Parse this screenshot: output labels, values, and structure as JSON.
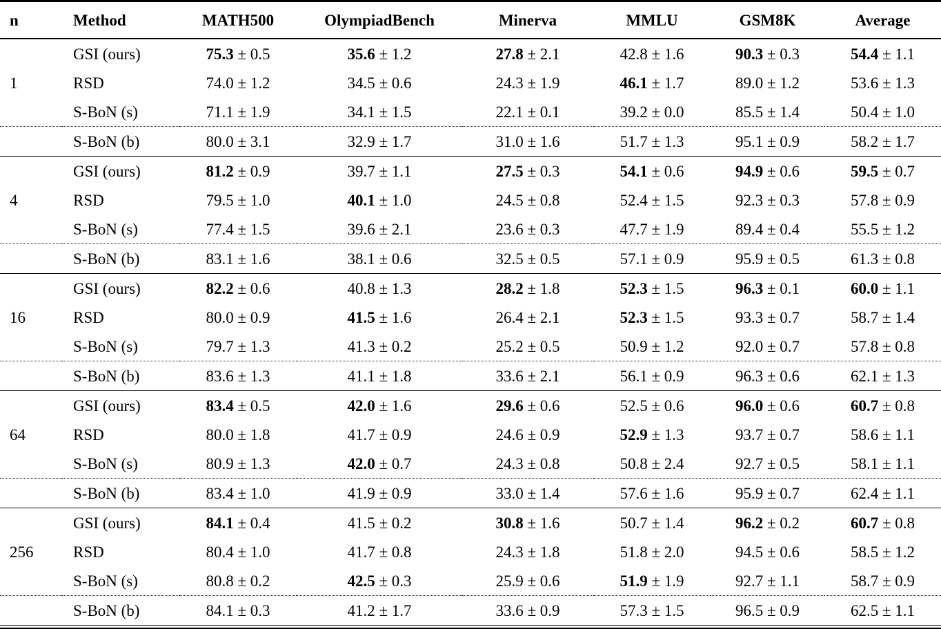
{
  "table": {
    "plus_minus": "±",
    "columns": [
      "n",
      "Method",
      "MATH500",
      "OlympiadBench",
      "Minerva",
      "MMLU",
      "GSM8K",
      "Average"
    ],
    "groups": [
      {
        "n": "1",
        "rows": [
          {
            "method": "GSI (ours)",
            "cells": [
              {
                "mean": "75.3",
                "err": "0.5",
                "bold": true
              },
              {
                "mean": "35.6",
                "err": "1.2",
                "bold": true
              },
              {
                "mean": "27.8",
                "err": "2.1",
                "bold": true
              },
              {
                "mean": "42.8",
                "err": "1.6",
                "bold": false
              },
              {
                "mean": "90.3",
                "err": "0.3",
                "bold": true
              },
              {
                "mean": "54.4",
                "err": "1.1",
                "bold": true
              }
            ]
          },
          {
            "method": "RSD",
            "cells": [
              {
                "mean": "74.0",
                "err": "1.2",
                "bold": false
              },
              {
                "mean": "34.5",
                "err": "0.6",
                "bold": false
              },
              {
                "mean": "24.3",
                "err": "1.9",
                "bold": false
              },
              {
                "mean": "46.1",
                "err": "1.7",
                "bold": true
              },
              {
                "mean": "89.0",
                "err": "1.2",
                "bold": false
              },
              {
                "mean": "53.6",
                "err": "1.3",
                "bold": false
              }
            ]
          },
          {
            "method": "S-BoN (s)",
            "cells": [
              {
                "mean": "71.1",
                "err": "1.9",
                "bold": false
              },
              {
                "mean": "34.1",
                "err": "1.5",
                "bold": false
              },
              {
                "mean": "22.1",
                "err": "0.1",
                "bold": false
              },
              {
                "mean": "39.2",
                "err": "0.0",
                "bold": false
              },
              {
                "mean": "85.5",
                "err": "1.4",
                "bold": false
              },
              {
                "mean": "50.4",
                "err": "1.0",
                "bold": false
              }
            ]
          },
          {
            "method": "S-BoN (b)",
            "cells": [
              {
                "mean": "80.0",
                "err": "3.1",
                "bold": false
              },
              {
                "mean": "32.9",
                "err": "1.7",
                "bold": false
              },
              {
                "mean": "31.0",
                "err": "1.6",
                "bold": false
              },
              {
                "mean": "51.7",
                "err": "1.3",
                "bold": false
              },
              {
                "mean": "95.1",
                "err": "0.9",
                "bold": false
              },
              {
                "mean": "58.2",
                "err": "1.7",
                "bold": false
              }
            ]
          }
        ]
      },
      {
        "n": "4",
        "rows": [
          {
            "method": "GSI (ours)",
            "cells": [
              {
                "mean": "81.2",
                "err": "0.9",
                "bold": true
              },
              {
                "mean": "39.7",
                "err": "1.1",
                "bold": false
              },
              {
                "mean": "27.5",
                "err": "0.3",
                "bold": true
              },
              {
                "mean": "54.1",
                "err": "0.6",
                "bold": true
              },
              {
                "mean": "94.9",
                "err": "0.6",
                "bold": true
              },
              {
                "mean": "59.5",
                "err": "0.7",
                "bold": true
              }
            ]
          },
          {
            "method": "RSD",
            "cells": [
              {
                "mean": "79.5",
                "err": "1.0",
                "bold": false
              },
              {
                "mean": "40.1",
                "err": "1.0",
                "bold": true
              },
              {
                "mean": "24.5",
                "err": "0.8",
                "bold": false
              },
              {
                "mean": "52.4",
                "err": "1.5",
                "bold": false
              },
              {
                "mean": "92.3",
                "err": "0.3",
                "bold": false
              },
              {
                "mean": "57.8",
                "err": "0.9",
                "bold": false
              }
            ]
          },
          {
            "method": "S-BoN (s)",
            "cells": [
              {
                "mean": "77.4",
                "err": "1.5",
                "bold": false
              },
              {
                "mean": "39.6",
                "err": "2.1",
                "bold": false
              },
              {
                "mean": "23.6",
                "err": "0.3",
                "bold": false
              },
              {
                "mean": "47.7",
                "err": "1.9",
                "bold": false
              },
              {
                "mean": "89.4",
                "err": "0.4",
                "bold": false
              },
              {
                "mean": "55.5",
                "err": "1.2",
                "bold": false
              }
            ]
          },
          {
            "method": "S-BoN (b)",
            "cells": [
              {
                "mean": "83.1",
                "err": "1.6",
                "bold": false
              },
              {
                "mean": "38.1",
                "err": "0.6",
                "bold": false
              },
              {
                "mean": "32.5",
                "err": "0.5",
                "bold": false
              },
              {
                "mean": "57.1",
                "err": "0.9",
                "bold": false
              },
              {
                "mean": "95.9",
                "err": "0.5",
                "bold": false
              },
              {
                "mean": "61.3",
                "err": "0.8",
                "bold": false
              }
            ]
          }
        ]
      },
      {
        "n": "16",
        "rows": [
          {
            "method": "GSI (ours)",
            "cells": [
              {
                "mean": "82.2",
                "err": "0.6",
                "bold": true
              },
              {
                "mean": "40.8",
                "err": "1.3",
                "bold": false
              },
              {
                "mean": "28.2",
                "err": "1.8",
                "bold": true
              },
              {
                "mean": "52.3",
                "err": "1.5",
                "bold": true
              },
              {
                "mean": "96.3",
                "err": "0.1",
                "bold": true
              },
              {
                "mean": "60.0",
                "err": "1.1",
                "bold": true
              }
            ]
          },
          {
            "method": "RSD",
            "cells": [
              {
                "mean": "80.0",
                "err": "0.9",
                "bold": false
              },
              {
                "mean": "41.5",
                "err": "1.6",
                "bold": true
              },
              {
                "mean": "26.4",
                "err": "2.1",
                "bold": false
              },
              {
                "mean": "52.3",
                "err": "1.5",
                "bold": true
              },
              {
                "mean": "93.3",
                "err": "0.7",
                "bold": false
              },
              {
                "mean": "58.7",
                "err": "1.4",
                "bold": false
              }
            ]
          },
          {
            "method": "S-BoN (s)",
            "cells": [
              {
                "mean": "79.7",
                "err": "1.3",
                "bold": false
              },
              {
                "mean": "41.3",
                "err": "0.2",
                "bold": false
              },
              {
                "mean": "25.2",
                "err": "0.5",
                "bold": false
              },
              {
                "mean": "50.9",
                "err": "1.2",
                "bold": false
              },
              {
                "mean": "92.0",
                "err": "0.7",
                "bold": false
              },
              {
                "mean": "57.8",
                "err": "0.8",
                "bold": false
              }
            ]
          },
          {
            "method": "S-BoN (b)",
            "cells": [
              {
                "mean": "83.6",
                "err": "1.3",
                "bold": false
              },
              {
                "mean": "41.1",
                "err": "1.8",
                "bold": false
              },
              {
                "mean": "33.6",
                "err": "2.1",
                "bold": false
              },
              {
                "mean": "56.1",
                "err": "0.9",
                "bold": false
              },
              {
                "mean": "96.3",
                "err": "0.6",
                "bold": false
              },
              {
                "mean": "62.1",
                "err": "1.3",
                "bold": false
              }
            ]
          }
        ]
      },
      {
        "n": "64",
        "rows": [
          {
            "method": "GSI (ours)",
            "cells": [
              {
                "mean": "83.4",
                "err": "0.5",
                "bold": true
              },
              {
                "mean": "42.0",
                "err": "1.6",
                "bold": true
              },
              {
                "mean": "29.6",
                "err": "0.6",
                "bold": true
              },
              {
                "mean": "52.5",
                "err": "0.6",
                "bold": false
              },
              {
                "mean": "96.0",
                "err": "0.6",
                "bold": true
              },
              {
                "mean": "60.7",
                "err": "0.8",
                "bold": true
              }
            ]
          },
          {
            "method": "RSD",
            "cells": [
              {
                "mean": "80.0",
                "err": "1.8",
                "bold": false
              },
              {
                "mean": "41.7",
                "err": "0.9",
                "bold": false
              },
              {
                "mean": "24.6",
                "err": "0.9",
                "bold": false
              },
              {
                "mean": "52.9",
                "err": "1.3",
                "bold": true
              },
              {
                "mean": "93.7",
                "err": "0.7",
                "bold": false
              },
              {
                "mean": "58.6",
                "err": "1.1",
                "bold": false
              }
            ]
          },
          {
            "method": "S-BoN (s)",
            "cells": [
              {
                "mean": "80.9",
                "err": "1.3",
                "bold": false
              },
              {
                "mean": "42.0",
                "err": "0.7",
                "bold": true
              },
              {
                "mean": "24.3",
                "err": "0.8",
                "bold": false
              },
              {
                "mean": "50.8",
                "err": "2.4",
                "bold": false
              },
              {
                "mean": "92.7",
                "err": "0.5",
                "bold": false
              },
              {
                "mean": "58.1",
                "err": "1.1",
                "bold": false
              }
            ]
          },
          {
            "method": "S-BoN (b)",
            "cells": [
              {
                "mean": "83.4",
                "err": "1.0",
                "bold": false
              },
              {
                "mean": "41.9",
                "err": "0.9",
                "bold": false
              },
              {
                "mean": "33.0",
                "err": "1.4",
                "bold": false
              },
              {
                "mean": "57.6",
                "err": "1.6",
                "bold": false
              },
              {
                "mean": "95.9",
                "err": "0.7",
                "bold": false
              },
              {
                "mean": "62.4",
                "err": "1.1",
                "bold": false
              }
            ]
          }
        ]
      },
      {
        "n": "256",
        "rows": [
          {
            "method": "GSI (ours)",
            "cells": [
              {
                "mean": "84.1",
                "err": "0.4",
                "bold": true
              },
              {
                "mean": "41.5",
                "err": "0.2",
                "bold": false
              },
              {
                "mean": "30.8",
                "err": "1.6",
                "bold": true
              },
              {
                "mean": "50.7",
                "err": "1.4",
                "bold": false
              },
              {
                "mean": "96.2",
                "err": "0.2",
                "bold": true
              },
              {
                "mean": "60.7",
                "err": "0.8",
                "bold": true
              }
            ]
          },
          {
            "method": "RSD",
            "cells": [
              {
                "mean": "80.4",
                "err": "1.0",
                "bold": false
              },
              {
                "mean": "41.7",
                "err": "0.8",
                "bold": false
              },
              {
                "mean": "24.3",
                "err": "1.8",
                "bold": false
              },
              {
                "mean": "51.8",
                "err": "2.0",
                "bold": false
              },
              {
                "mean": "94.5",
                "err": "0.6",
                "bold": false
              },
              {
                "mean": "58.5",
                "err": "1.2",
                "bold": false
              }
            ]
          },
          {
            "method": "S-BoN (s)",
            "cells": [
              {
                "mean": "80.8",
                "err": "0.2",
                "bold": false
              },
              {
                "mean": "42.5",
                "err": "0.3",
                "bold": true
              },
              {
                "mean": "25.9",
                "err": "0.6",
                "bold": false
              },
              {
                "mean": "51.9",
                "err": "1.9",
                "bold": true
              },
              {
                "mean": "92.7",
                "err": "1.1",
                "bold": false
              },
              {
                "mean": "58.7",
                "err": "0.9",
                "bold": false
              }
            ]
          },
          {
            "method": "S-BoN (b)",
            "cells": [
              {
                "mean": "84.1",
                "err": "0.3",
                "bold": false
              },
              {
                "mean": "41.2",
                "err": "1.7",
                "bold": false
              },
              {
                "mean": "33.6",
                "err": "0.9",
                "bold": false
              },
              {
                "mean": "57.3",
                "err": "1.5",
                "bold": false
              },
              {
                "mean": "96.5",
                "err": "0.9",
                "bold": false
              },
              {
                "mean": "62.5",
                "err": "1.1",
                "bold": false
              }
            ]
          }
        ]
      }
    ]
  }
}
